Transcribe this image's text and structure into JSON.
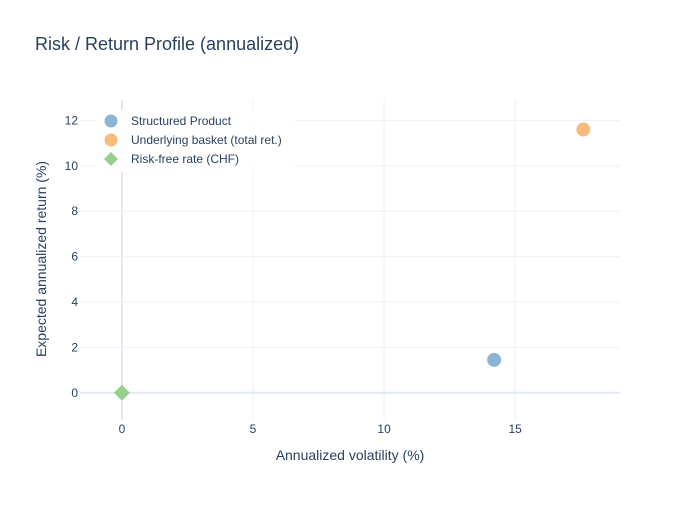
{
  "chart_data": {
    "type": "scatter",
    "title": "Risk / Return Profile (annualized)",
    "xlabel": "Annualized volatility (%)",
    "ylabel": "Expected annualized return (%)",
    "xlim": [
      -1.6,
      19.0
    ],
    "ylim": [
      -1.2,
      12.9
    ],
    "x_ticks": [
      0,
      5,
      10,
      15
    ],
    "y_ticks": [
      0,
      2,
      4,
      6,
      8,
      10,
      12
    ],
    "grid": true,
    "legend_position": "top-left",
    "series": [
      {
        "name": "Structured Product",
        "marker": "circle",
        "color": "#8ab5d6",
        "points": [
          {
            "x": 14.2,
            "y": 1.45
          }
        ]
      },
      {
        "name": "Underlying basket (total ret.)",
        "marker": "circle",
        "color": "#f7bb80",
        "points": [
          {
            "x": 17.6,
            "y": 11.6
          }
        ]
      },
      {
        "name": "Risk-free rate (CHF)",
        "marker": "diamond",
        "color": "#96cf8e",
        "points": [
          {
            "x": 0.0,
            "y": 0.0
          }
        ]
      }
    ]
  }
}
